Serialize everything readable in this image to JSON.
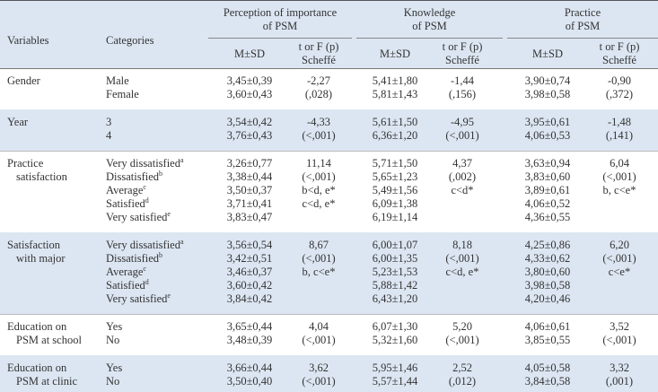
{
  "header": {
    "variables": "Variables",
    "categories": "Categories",
    "groups": [
      {
        "title": [
          "Perception of importance",
          "of PSM"
        ],
        "msd": "M±SD",
        "stat": [
          "t or F (p)",
          "Scheffé"
        ]
      },
      {
        "title": [
          "Knowledge",
          "of PSM"
        ],
        "msd": "M±SD",
        "stat": [
          "t or F (p)",
          "Scheffé"
        ]
      },
      {
        "title": [
          "Practice",
          "of PSM"
        ],
        "msd": "M±SD",
        "stat": [
          "t or F (p)",
          "Scheffé"
        ]
      }
    ]
  },
  "table": {
    "rows": [
      {
        "variable": [
          "Gender"
        ],
        "categories": [
          {
            "label": "Male"
          },
          {
            "label": "Female"
          }
        ],
        "cells": [
          {
            "msd": [
              "3,45±0,39",
              "3,60±0,43"
            ],
            "stat": [
              "-2,27",
              "(,028)"
            ]
          },
          {
            "msd": [
              "5,41±1,80",
              "5,81±1,43"
            ],
            "stat": [
              "-1,44",
              "(,156)"
            ]
          },
          {
            "msd": [
              "3,90±0,74",
              "3,98±0,58"
            ],
            "stat": [
              "-0,90",
              "(,372)"
            ]
          }
        ]
      },
      {
        "variable": [
          "Year"
        ],
        "categories": [
          {
            "label": "3"
          },
          {
            "label": "4"
          }
        ],
        "cells": [
          {
            "msd": [
              "3,54±0,42",
              "3,76±0,43"
            ],
            "stat": [
              "-4,33",
              "(<,001)"
            ]
          },
          {
            "msd": [
              "5,61±1,50",
              "6,36±1,20"
            ],
            "stat": [
              "-4,95",
              "(<,001)"
            ]
          },
          {
            "msd": [
              "3,95±0,61",
              "4,06±0,53"
            ],
            "stat": [
              "-1,48",
              "(,141)"
            ]
          }
        ]
      },
      {
        "variable": [
          "Practice",
          "satisfaction"
        ],
        "categories": [
          {
            "label": "Very dissatisfied",
            "sup": "a"
          },
          {
            "label": "Dissatisfied",
            "sup": "b"
          },
          {
            "label": "Average",
            "sup": "c"
          },
          {
            "label": "Satisfied",
            "sup": "d"
          },
          {
            "label": "Very satisfied",
            "sup": "e"
          }
        ],
        "cells": [
          {
            "msd": [
              "3,26±0,77",
              "3,38±0,44",
              "3,50±0,37",
              "3,71±0,41",
              "3,83±0,47"
            ],
            "stat": [
              "11,14",
              "(<,001)",
              "b<d, e*",
              "c<d, e*"
            ]
          },
          {
            "msd": [
              "5,71±1,50",
              "5,65±1,23",
              "5,49±1,56",
              "6,09±1,38",
              "6,19±1,14"
            ],
            "stat": [
              "4,37",
              "(,002)",
              "c<d*"
            ]
          },
          {
            "msd": [
              "3,63±0,94",
              "3,83±0,60",
              "3,89±0,61",
              "4,06±0,52",
              "4,36±0,55"
            ],
            "stat": [
              "6,04",
              "(<,001)",
              "b, c<e*"
            ]
          }
        ]
      },
      {
        "variable": [
          "Satisfaction",
          "with major"
        ],
        "categories": [
          {
            "label": "Very dissatisfied",
            "sup": "a"
          },
          {
            "label": "Dissatisfied",
            "sup": "b"
          },
          {
            "label": "Average",
            "sup": "c"
          },
          {
            "label": "Satisfied",
            "sup": "d"
          },
          {
            "label": "Very satisfied",
            "sup": "e"
          }
        ],
        "cells": [
          {
            "msd": [
              "3,56±0,54",
              "3,42±0,51",
              "3,46±0,37",
              "3,60±0,42",
              "3,84±0,42"
            ],
            "stat": [
              "8,67",
              "(<,001)",
              "b, c<e*"
            ]
          },
          {
            "msd": [
              "6,00±1,07",
              "6,00±1,35",
              "5,23±1,53",
              "5,88±1,42",
              "6,43±1,20"
            ],
            "stat": [
              "8,18",
              "(<,001)",
              "c<d, e*"
            ]
          },
          {
            "msd": [
              "4,25±0,86",
              "4,33±0,62",
              "3,80±0,60",
              "3,98±0,58",
              "4,20±0,46"
            ],
            "stat": [
              "6,20",
              "(<,001)",
              "c<e*"
            ]
          }
        ]
      },
      {
        "variable": [
          "Education on",
          "PSM at school"
        ],
        "categories": [
          {
            "label": "Yes"
          },
          {
            "label": "No"
          }
        ],
        "cells": [
          {
            "msd": [
              "3,65±0,44",
              "3,48±0,39"
            ],
            "stat": [
              "4,04",
              "(<,001)"
            ]
          },
          {
            "msd": [
              "6,07±1,30",
              "5,32±1,60"
            ],
            "stat": [
              "5,20",
              "(<,001)"
            ]
          },
          {
            "msd": [
              "4,06±0,61",
              "3,85±0,55"
            ],
            "stat": [
              "3,52",
              "(<,001)"
            ]
          }
        ]
      },
      {
        "variable": [
          "Education on",
          "PSM at clinic"
        ],
        "categories": [
          {
            "label": "Yes"
          },
          {
            "label": "No"
          }
        ],
        "cells": [
          {
            "msd": [
              "3,66±0,44",
              "3,50±0,40"
            ],
            "stat": [
              "3,62",
              "(<,001)"
            ]
          },
          {
            "msd": [
              "5,95±1,46",
              "5,57±1,44"
            ],
            "stat": [
              "2,52",
              "(,012)"
            ]
          },
          {
            "msd": [
              "4,05±0,58",
              "3,84±0,58"
            ],
            "stat": [
              "3,32",
              "(,001)"
            ]
          }
        ]
      }
    ]
  }
}
